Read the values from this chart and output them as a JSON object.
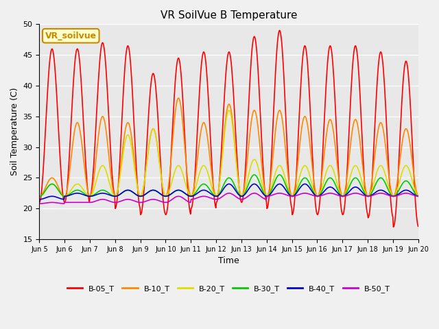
{
  "title": "VR SoilVue B Temperature",
  "xlabel": "Time",
  "ylabel": "Soil Temperature (C)",
  "ylim": [
    15,
    50
  ],
  "yticks": [
    15,
    20,
    25,
    30,
    35,
    40,
    45,
    50
  ],
  "x_tick_labels": [
    "Jun 5",
    "Jun 6",
    "Jun 7",
    "Jun 8",
    "Jun 9",
    "Jun 10",
    "Jun 11",
    "Jun 12",
    "Jun 13",
    "Jun 14",
    "Jun 15",
    "Jun 16",
    "Jun 17",
    "Jun 18",
    "Jun 19",
    "Jun 20"
  ],
  "annotation": "VR_soilvue",
  "annotation_color": "#cc8800",
  "annotation_bg": "#ffffcc",
  "background_color": "#f0f0f0",
  "plot_bg": "#e8e8e8",
  "grid_color": "#ffffff",
  "series_keys": [
    "B-05_T",
    "B-10_T",
    "B-20_T",
    "B-30_T",
    "B-40_T",
    "B-50_T"
  ],
  "series_colors": {
    "B-05_T": "#ff0000",
    "B-10_T": "#ff8800",
    "B-20_T": "#dddd00",
    "B-30_T": "#00cc00",
    "B-40_T": "#0000cc",
    "B-50_T": "#cc00cc"
  },
  "num_days": 15,
  "samples_per_day": 48,
  "day_peaks": {
    "B-05_T": [
      46,
      46,
      47,
      46.5,
      42,
      44.5,
      45.5,
      45.5,
      48,
      49,
      46.5,
      46.5,
      46.5,
      45.5,
      44
    ],
    "B-05_T_mins": [
      21,
      21,
      22,
      20,
      19,
      19,
      20,
      21,
      21,
      20,
      19,
      19,
      19,
      18.5,
      17
    ],
    "B-10_T": [
      25,
      34,
      35,
      34,
      33,
      38,
      34,
      37,
      36,
      36,
      35,
      34.5,
      34.5,
      34,
      33
    ],
    "B-10_T_mins": [
      22,
      22,
      22,
      22,
      22,
      22,
      22,
      22,
      22,
      22,
      22,
      22,
      22,
      22,
      22
    ],
    "B-20_T": [
      24,
      24,
      27,
      32,
      33,
      27,
      27,
      36,
      28,
      27,
      27,
      27,
      27,
      27,
      27
    ],
    "B-20_T_mins": [
      22,
      22,
      22,
      22,
      22,
      22,
      22,
      22,
      22,
      22,
      22,
      22,
      22,
      22,
      22
    ],
    "B-30_T": [
      24,
      23,
      23,
      23,
      23,
      23,
      24,
      25,
      25.5,
      25.5,
      25,
      25,
      25,
      25,
      24.5
    ],
    "B-30_T_mins": [
      22,
      22,
      22,
      22,
      22,
      22,
      22,
      22,
      22,
      22,
      22,
      22,
      22,
      22,
      22
    ],
    "B-40_T": [
      22,
      22.5,
      22.5,
      23,
      23,
      23,
      23,
      24,
      24,
      24,
      24,
      23.5,
      23.5,
      23,
      23
    ],
    "B-40_T_mins": [
      21.5,
      22,
      22,
      22,
      22,
      22,
      22,
      22,
      22,
      22,
      22,
      22,
      22,
      22,
      22
    ],
    "B-50_T": [
      21,
      21,
      21.5,
      21.5,
      21.5,
      22,
      22,
      22.5,
      22.5,
      22.5,
      22.5,
      22.5,
      22.5,
      22.5,
      22.5
    ],
    "B-50_T_mins": [
      20.8,
      21,
      21,
      21,
      21,
      21,
      21.5,
      21.5,
      21.5,
      22,
      22,
      22,
      22,
      22,
      22
    ]
  }
}
